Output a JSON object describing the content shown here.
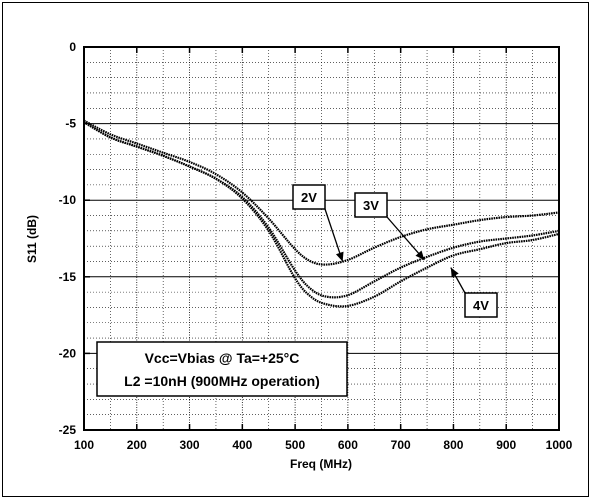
{
  "chart_data": {
    "type": "line",
    "title": "",
    "xlabel": "Freq (MHz)",
    "ylabel": "S11 (dB)",
    "xlim": [
      100,
      1000
    ],
    "ylim": [
      -25,
      0
    ],
    "x_ticks": [
      100,
      200,
      300,
      400,
      500,
      600,
      700,
      800,
      900,
      1000
    ],
    "y_ticks": [
      0,
      -5,
      -10,
      -15,
      -20,
      -25
    ],
    "grid": true,
    "annotation_lines": [
      "Vcc=Vbias @ Ta=+25°C",
      "L2 =10nH (900MHz operation)"
    ],
    "series": [
      {
        "name": "2V",
        "x": [
          100,
          150,
          200,
          250,
          300,
          350,
          400,
          450,
          500,
          530,
          560,
          600,
          650,
          700,
          750,
          800,
          850,
          900,
          950,
          1000
        ],
        "y": [
          -4.8,
          -5.7,
          -6.3,
          -6.9,
          -7.5,
          -8.3,
          -9.5,
          -11.2,
          -13.2,
          -14.0,
          -14.2,
          -13.9,
          -13.1,
          -12.4,
          -11.9,
          -11.6,
          -11.3,
          -11.1,
          -11.0,
          -10.8
        ]
      },
      {
        "name": "3V",
        "x": [
          100,
          150,
          200,
          250,
          300,
          350,
          400,
          450,
          500,
          530,
          560,
          600,
          650,
          700,
          750,
          800,
          850,
          900,
          950,
          1000
        ],
        "y": [
          -4.9,
          -5.9,
          -6.5,
          -7.1,
          -7.8,
          -8.6,
          -9.8,
          -11.8,
          -14.6,
          -15.8,
          -16.3,
          -16.2,
          -15.3,
          -14.4,
          -13.7,
          -13.1,
          -12.7,
          -12.5,
          -12.3,
          -12.0
        ]
      },
      {
        "name": "4V",
        "x": [
          100,
          150,
          200,
          250,
          300,
          350,
          400,
          450,
          500,
          530,
          560,
          600,
          650,
          700,
          750,
          800,
          850,
          900,
          950,
          1000
        ],
        "y": [
          -4.9,
          -5.9,
          -6.5,
          -7.1,
          -7.8,
          -8.6,
          -9.9,
          -12.0,
          -15.1,
          -16.3,
          -16.8,
          -16.9,
          -16.3,
          -15.3,
          -14.4,
          -13.6,
          -13.2,
          -12.8,
          -12.6,
          -12.2
        ]
      }
    ],
    "callouts": [
      {
        "label": "2V",
        "point": [
          590,
          -14.0
        ]
      },
      {
        "label": "3V",
        "point": [
          745,
          -13.9
        ]
      },
      {
        "label": "4V",
        "point": [
          795,
          -14.4
        ]
      }
    ]
  }
}
